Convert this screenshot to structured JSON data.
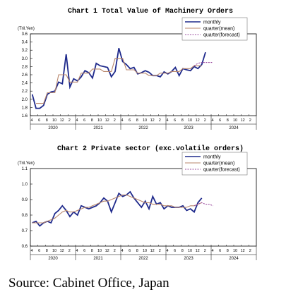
{
  "source": "Source: Cabinet Office, Japan",
  "chart_data": [
    {
      "type": "line",
      "title": "Chart 1 Total Value of Machinery Orders",
      "ylabel": "(Tril.Yen)",
      "ylim": [
        1.6,
        3.6
      ],
      "yticks": [
        "1.6",
        "1.8",
        "2.0",
        "2.2",
        "2.4",
        "2.6",
        "2.8",
        "3.0",
        "3.2",
        "3.4",
        "3.6"
      ],
      "month_ticks": [
        "4",
        "6",
        "8",
        "10",
        "12",
        "2",
        "4",
        "6",
        "8",
        "10",
        "12",
        "2",
        "4",
        "6",
        "8",
        "10",
        "12",
        "2",
        "4",
        "6",
        "8",
        "10",
        "12",
        "2",
        "4",
        "6",
        "8",
        "10",
        "12",
        "2"
      ],
      "years": [
        "2020",
        "2021",
        "2022",
        "2023",
        "2024"
      ],
      "legend_position": "top-right",
      "series": [
        {
          "name": "monthly",
          "color": "#1f2a8c",
          "values": [
            2.12,
            1.78,
            1.78,
            1.85,
            2.12,
            2.18,
            2.2,
            2.42,
            2.38,
            3.1,
            2.3,
            2.5,
            2.45,
            2.55,
            2.7,
            2.65,
            2.52,
            2.88,
            2.82,
            2.8,
            2.78,
            2.55,
            2.68,
            3.25,
            2.92,
            2.85,
            2.75,
            2.78,
            2.62,
            2.65,
            2.7,
            2.66,
            2.58,
            2.58,
            2.55,
            2.67,
            2.62,
            2.68,
            2.78,
            2.58,
            2.75,
            2.72,
            2.7,
            2.8,
            2.75,
            2.85,
            3.15
          ]
        },
        {
          "name": "quarter(mean)",
          "color": "#b8866b",
          "values": [
            null,
            1.9,
            1.9,
            1.9,
            2.16,
            2.16,
            2.16,
            2.6,
            2.6,
            2.6,
            2.42,
            2.42,
            2.42,
            2.64,
            2.64,
            2.64,
            2.74,
            2.74,
            2.74,
            2.68,
            2.68,
            2.68,
            3.0,
            3.0,
            3.0,
            2.72,
            2.72,
            2.72,
            2.64,
            2.64,
            2.64,
            2.58,
            2.58,
            2.58,
            2.64,
            2.64,
            2.64,
            2.68,
            2.68,
            2.68,
            2.75,
            2.75,
            2.75,
            2.82,
            2.82,
            2.82,
            null
          ]
        },
        {
          "name": "quarter(forecast)",
          "color": "#9d4fa0",
          "dashed": true,
          "values": [
            null,
            null,
            null,
            null,
            null,
            null,
            null,
            null,
            null,
            null,
            null,
            null,
            null,
            null,
            null,
            null,
            null,
            null,
            null,
            null,
            null,
            null,
            null,
            null,
            null,
            null,
            null,
            null,
            null,
            null,
            null,
            null,
            null,
            null,
            null,
            null,
            null,
            null,
            null,
            null,
            null,
            null,
            null,
            2.82,
            2.88,
            2.9,
            2.9,
            2.9,
            2.9
          ]
        }
      ]
    },
    {
      "type": "line",
      "title": "Chart 2 Private sector (exc.volatile orders)",
      "ylabel": "(Tril.Yen)",
      "ylim": [
        0.6,
        1.1
      ],
      "yticks": [
        "0.6",
        "0.7",
        "0.8",
        "0.9",
        "1.0",
        "1.1"
      ],
      "month_ticks": [
        "4",
        "6",
        "8",
        "10",
        "12",
        "2",
        "4",
        "6",
        "8",
        "10",
        "12",
        "2",
        "4",
        "6",
        "8",
        "10",
        "12",
        "2",
        "4",
        "6",
        "8",
        "10",
        "12",
        "2",
        "4",
        "6",
        "8",
        "10",
        "12",
        "2"
      ],
      "years": [
        "2020",
        "2021",
        "2022",
        "2023",
        "2024"
      ],
      "legend_position": "top-right",
      "series": [
        {
          "name": "monthly",
          "color": "#1f2a8c",
          "values": [
            0.75,
            0.76,
            0.73,
            0.75,
            0.76,
            0.75,
            0.81,
            0.83,
            0.86,
            0.83,
            0.79,
            0.82,
            0.8,
            0.86,
            0.85,
            0.84,
            0.85,
            0.86,
            0.88,
            0.91,
            0.89,
            0.82,
            0.88,
            0.94,
            0.92,
            0.93,
            0.95,
            0.91,
            0.88,
            0.85,
            0.89,
            0.84,
            0.92,
            0.87,
            0.88,
            0.84,
            0.86,
            0.85,
            0.85,
            0.85,
            0.86,
            0.83,
            0.84,
            0.82,
            0.88,
            0.91
          ]
        },
        {
          "name": "quarter(mean)",
          "color": "#b8866b",
          "values": [
            0.75,
            0.75,
            0.75,
            0.75,
            0.76,
            0.77,
            0.78,
            0.8,
            0.82,
            0.83,
            0.82,
            0.82,
            0.83,
            0.84,
            0.85,
            0.85,
            0.86,
            0.87,
            0.88,
            0.89,
            0.89,
            0.9,
            0.91,
            0.92,
            0.93,
            0.93,
            0.92,
            0.91,
            0.9,
            0.89,
            0.88,
            0.88,
            0.87,
            0.87,
            0.87,
            0.86,
            0.86,
            0.86,
            0.85,
            0.85,
            0.85,
            0.85,
            0.86,
            0.86,
            0.87,
            0.88
          ]
        },
        {
          "name": "quarter(forecast)",
          "color": "#9d4fa0",
          "dashed": true,
          "values": [
            null,
            null,
            null,
            null,
            null,
            null,
            null,
            null,
            null,
            null,
            null,
            null,
            null,
            null,
            null,
            null,
            null,
            null,
            null,
            null,
            null,
            null,
            null,
            null,
            null,
            null,
            null,
            null,
            null,
            null,
            null,
            null,
            null,
            null,
            null,
            null,
            null,
            null,
            null,
            null,
            null,
            null,
            null,
            0.86,
            0.87,
            0.88,
            0.87,
            0.87,
            0.86
          ]
        }
      ]
    }
  ]
}
